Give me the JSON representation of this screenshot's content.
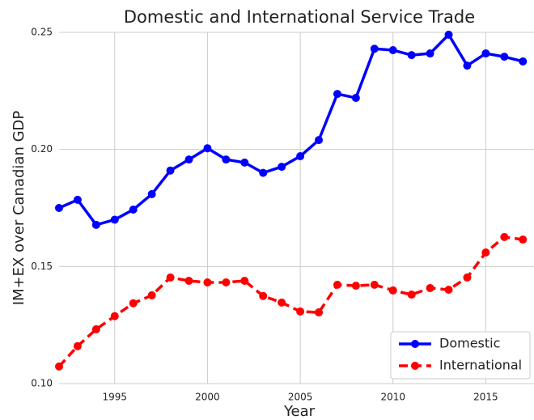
{
  "chart_data": {
    "type": "line",
    "title": "Domestic and International Service Trade",
    "x_label": "Year",
    "y_label": "IM+EX over Canadian GDP",
    "x": [
      1992,
      1993,
      1994,
      1995,
      1996,
      1997,
      1998,
      1999,
      2000,
      2001,
      2002,
      2003,
      2004,
      2005,
      2006,
      2007,
      2008,
      2009,
      2010,
      2011,
      2012,
      2013,
      2014,
      2015,
      2016,
      2017
    ],
    "series": [
      {
        "name": "Domestic",
        "color": "#0000ff",
        "dashed": false,
        "values": [
          0.175,
          0.1785,
          0.1678,
          0.17,
          0.1743,
          0.1809,
          0.191,
          0.1957,
          0.2005,
          0.1957,
          0.1944,
          0.19,
          0.1926,
          0.1971,
          0.204,
          0.2237,
          0.222,
          0.243,
          0.2424,
          0.2403,
          0.241,
          0.249,
          0.2358,
          0.241,
          0.2396,
          0.2376
        ]
      },
      {
        "name": "International",
        "color": "#ff0000",
        "dashed": true,
        "values": [
          0.1073,
          0.116,
          0.1232,
          0.1288,
          0.1343,
          0.1377,
          0.1453,
          0.1439,
          0.1432,
          0.1432,
          0.1439,
          0.1374,
          0.1346,
          0.1308,
          0.1304,
          0.1422,
          0.1418,
          0.1422,
          0.1398,
          0.138,
          0.1408,
          0.1401,
          0.1453,
          0.156,
          0.1626,
          0.1615
        ]
      }
    ],
    "xlim": [
      1992,
      2017.6
    ],
    "xticks": [
      1995,
      2000,
      2005,
      2010,
      2015
    ],
    "ylim": [
      0.1,
      0.25
    ],
    "yticks": [
      {
        "value": 0.1,
        "label": "0.10"
      },
      {
        "value": 0.15,
        "label": "0.15"
      },
      {
        "value": 0.2,
        "label": "0.20"
      },
      {
        "value": 0.25,
        "label": "0.25"
      }
    ],
    "grid": true,
    "legend": "lower right"
  }
}
